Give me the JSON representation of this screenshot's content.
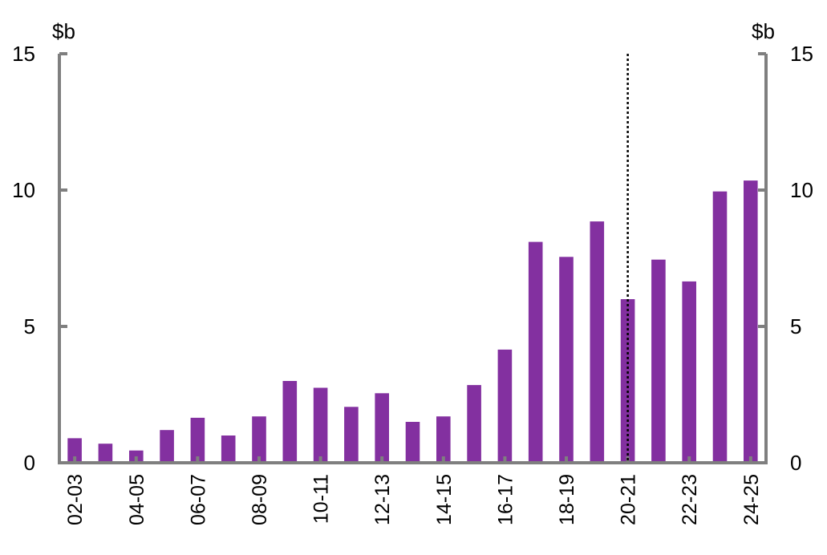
{
  "chart_data": {
    "type": "bar",
    "title": "",
    "xlabel": "",
    "ylabel_left": "$b",
    "ylabel_right": "$b",
    "ylim": [
      0,
      15
    ],
    "yticks": [
      "0",
      "5",
      "10",
      "15"
    ],
    "grid": false,
    "legend": "none",
    "colors": {
      "bar": "#8330A0",
      "axis": "#7f7f7f",
      "divider": "#000000"
    },
    "divider_after_category": "20-21",
    "categories": [
      "02-03",
      "03-04",
      "04-05",
      "05-06",
      "06-07",
      "07-08",
      "08-09",
      "09-10",
      "10-11",
      "11-12",
      "12-13",
      "13-14",
      "14-15",
      "15-16",
      "16-17",
      "17-18",
      "18-19",
      "19-20",
      "20-21",
      "21-22",
      "22-23",
      "23-24",
      "24-25"
    ],
    "category_labels": [
      "02-03",
      "",
      "04-05",
      "",
      "06-07",
      "",
      "08-09",
      "",
      "10-11",
      "",
      "12-13",
      "",
      "14-15",
      "",
      "16-17",
      "",
      "18-19",
      "",
      "20-21",
      "",
      "22-23",
      "",
      "24-25"
    ],
    "values": [
      0.9,
      0.7,
      0.45,
      1.2,
      1.65,
      1.0,
      1.7,
      3.0,
      2.75,
      2.05,
      2.55,
      1.5,
      1.7,
      2.85,
      4.15,
      8.1,
      7.55,
      8.85,
      6.0,
      7.45,
      6.65,
      9.95,
      10.35
    ]
  }
}
